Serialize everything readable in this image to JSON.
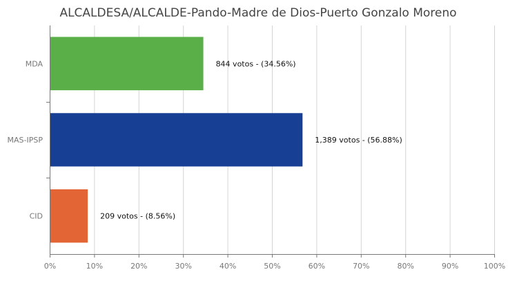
{
  "chart_data": {
    "type": "bar",
    "orientation": "horizontal",
    "title": "ALCALDESA/ALCALDE-Pando-Madre de Dios-Puerto Gonzalo Moreno",
    "categories": [
      "MDA",
      "MAS-IPSP",
      "CID"
    ],
    "values": [
      34.56,
      56.88,
      8.56
    ],
    "votes": [
      844,
      1389,
      209
    ],
    "data_labels": [
      "844 votos - (34.56%)",
      "1,389 votos - (56.88%)",
      "209 votos - (8.56%)"
    ],
    "colors": [
      "#5aaf48",
      "#173f94",
      "#e36536"
    ],
    "xlim": [
      0,
      100
    ],
    "x_ticks": [
      "0%",
      "10%",
      "20%",
      "30%",
      "40%",
      "50%",
      "60%",
      "70%",
      "80%",
      "90%",
      "100%"
    ],
    "xlabel": "",
    "ylabel": "",
    "grid": true,
    "legend": "none"
  }
}
